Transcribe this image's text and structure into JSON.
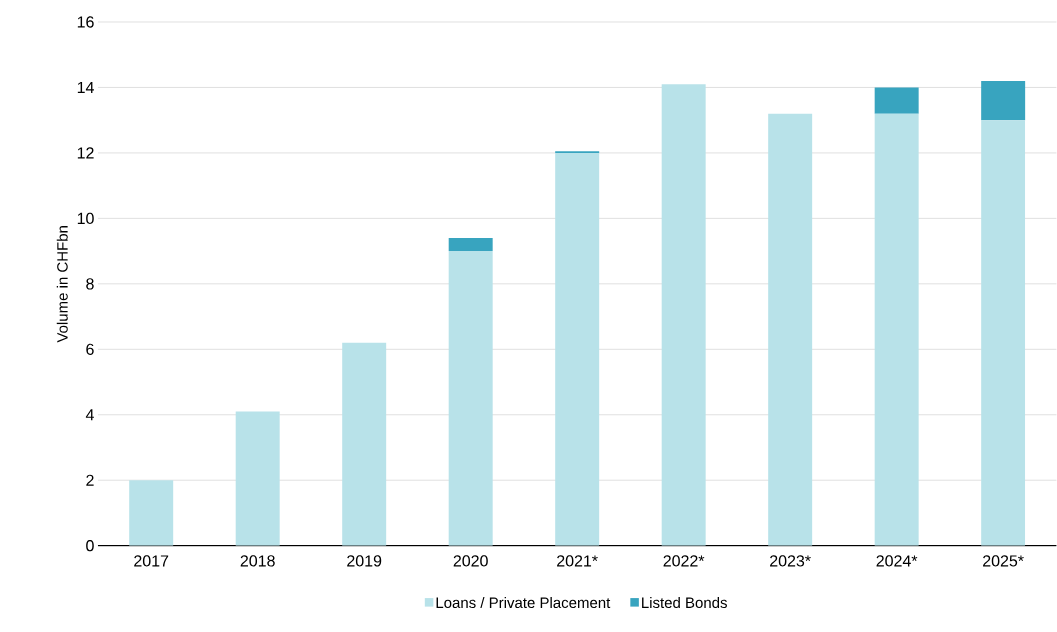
{
  "chart_data": {
    "type": "bar",
    "stacked": true,
    "ylabel": "Volume in CHFbn",
    "categories": [
      "2017",
      "2018",
      "2019",
      "2020",
      "2021*",
      "2022*",
      "2023*",
      "2024*",
      "2025*"
    ],
    "series": [
      {
        "name": "Loans / Private Placement",
        "color": "#b8e2e9",
        "values": [
          2.0,
          4.1,
          6.2,
          9.0,
          12.0,
          14.1,
          13.2,
          13.2,
          13.0
        ]
      },
      {
        "name": "Listed Bonds",
        "color": "#38a4bf",
        "values": [
          null,
          null,
          null,
          0.4,
          0.05,
          null,
          null,
          0.8,
          1.2
        ]
      }
    ],
    "ylim": [
      0,
      16
    ],
    "yticks": [
      0,
      2,
      4,
      6,
      8,
      10,
      12,
      14,
      16
    ],
    "grid": "y",
    "legend": "bottom"
  }
}
